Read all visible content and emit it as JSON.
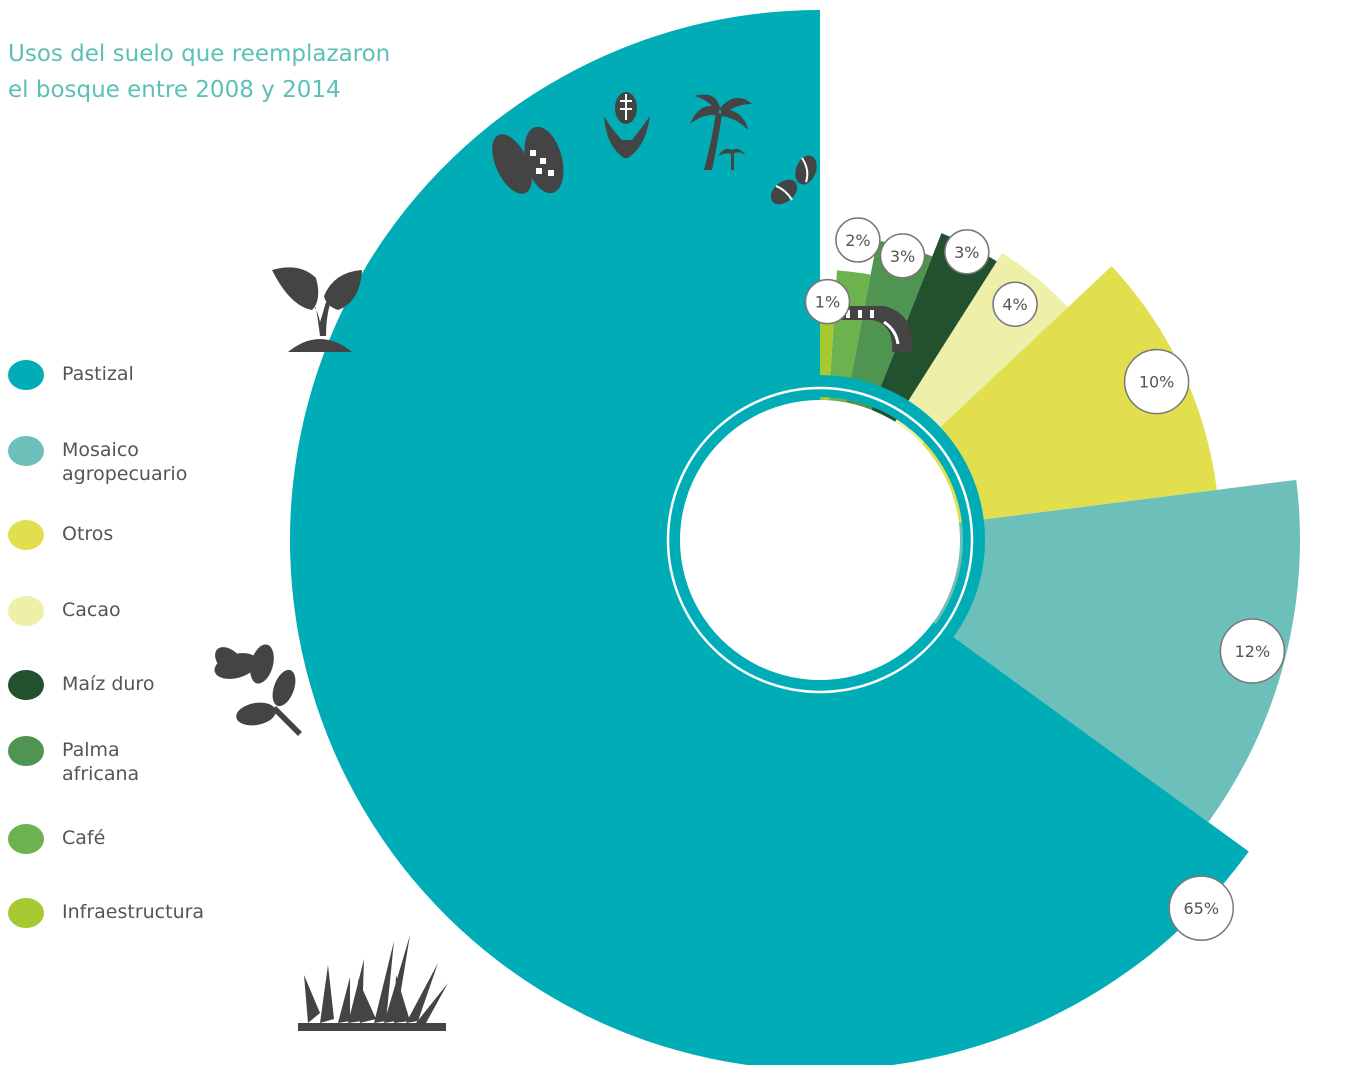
{
  "title_lines": [
    "Usos del suelo que reemplazaron",
    "el bosque entre 2008 y 2014"
  ],
  "colors": {
    "title": "#5cc0b6",
    "icons": "#444444",
    "badge_border": "#777777",
    "badge_text": "#555555"
  },
  "chart_data": {
    "type": "pie",
    "variant": "rose-donut",
    "title": "Usos del suelo que reemplazaron el bosque entre 2008 y 2014",
    "legend_position": "left",
    "slices": [
      {
        "label": "Pastizal",
        "value": 65,
        "value_label": "65%",
        "color": "#00adb7",
        "icon": "grass-icon"
      },
      {
        "label": "Mosaico agropecuario",
        "value": 12,
        "value_label": "12%",
        "color": "#6dc0b9",
        "icon": "leaves-icon"
      },
      {
        "label": "Otros",
        "value": 10,
        "value_label": "10%",
        "color": "#e1df4e",
        "icon": "sprout-icon"
      },
      {
        "label": "Cacao",
        "value": 4,
        "value_label": "4%",
        "color": "#eeefa8",
        "icon": "cacao-icon"
      },
      {
        "label": "Maíz duro",
        "value": 3,
        "value_label": "3%",
        "color": "#23502d",
        "icon": "corn-icon"
      },
      {
        "label": "Palma africana",
        "value": 3,
        "value_label": "3%",
        "color": "#4f9450",
        "icon": "palm-tree-icon"
      },
      {
        "label": "Café",
        "value": 2,
        "value_label": "2%",
        "color": "#6cb24f",
        "icon": "coffee-beans-icon"
      },
      {
        "label": "Infraestructura",
        "value": 1,
        "value_label": "1%",
        "color": "#a6c931",
        "icon": "road-icon"
      }
    ]
  },
  "legend": [
    {
      "label_lines": [
        "Pastizal"
      ],
      "color": "#00adb7"
    },
    {
      "label_lines": [
        "Mosaico",
        "agropecuario"
      ],
      "color": "#6dc0b9"
    },
    {
      "label_lines": [
        "Otros"
      ],
      "color": "#e1df4e"
    },
    {
      "label_lines": [
        "Cacao"
      ],
      "color": "#eeefa8"
    },
    {
      "label_lines": [
        "Maíz duro"
      ],
      "color": "#23502d"
    },
    {
      "label_lines": [
        "Palma",
        "africana"
      ],
      "color": "#4f9450"
    },
    {
      "label_lines": [
        "Café"
      ],
      "color": "#6cb24f"
    },
    {
      "label_lines": [
        "Infraestructura"
      ],
      "color": "#a6c931"
    }
  ]
}
